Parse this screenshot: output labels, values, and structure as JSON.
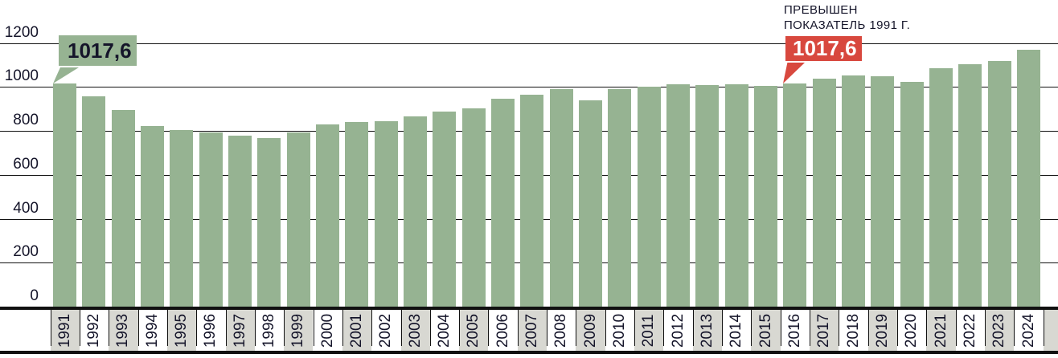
{
  "colors": {
    "bar_green": "#96b392",
    "accent_red": "#d8483e",
    "cell_gray": "#d8d8d2",
    "ink": "#15152a",
    "grid": "#111111"
  },
  "chart_data": {
    "type": "bar",
    "categories": [
      1991,
      1992,
      1993,
      1994,
      1995,
      1996,
      1997,
      1998,
      1999,
      2000,
      2001,
      2002,
      2003,
      2004,
      2005,
      2006,
      2007,
      2008,
      2009,
      2010,
      2011,
      2012,
      2013,
      2014,
      2015,
      2016,
      2017,
      2018,
      2019,
      2020,
      2021,
      2022,
      2023,
      2024
    ],
    "values": [
      1017.6,
      958,
      896,
      821,
      804,
      792,
      777,
      766,
      794,
      831,
      839,
      843,
      867,
      887,
      901,
      948,
      966,
      990,
      940,
      991,
      1003,
      1014,
      1007,
      1011,
      1005,
      1017.6,
      1036,
      1051,
      1048,
      1022,
      1086,
      1103,
      1118,
      1170
    ],
    "ylim": [
      0,
      1200
    ],
    "yticks": [
      0,
      200,
      400,
      600,
      800,
      1000,
      1200
    ],
    "grid": "on",
    "xtick_gray_rule": "odd years shaded",
    "annotation": {
      "line1": "ПРЕВЫШЕН",
      "line2": "ПОКАЗАТЕЛЬ 1991 Г."
    },
    "callouts": [
      {
        "year": 1991,
        "label": "1017,6",
        "style": "green"
      },
      {
        "year": 2016,
        "label": "1017,6",
        "style": "red"
      }
    ]
  }
}
